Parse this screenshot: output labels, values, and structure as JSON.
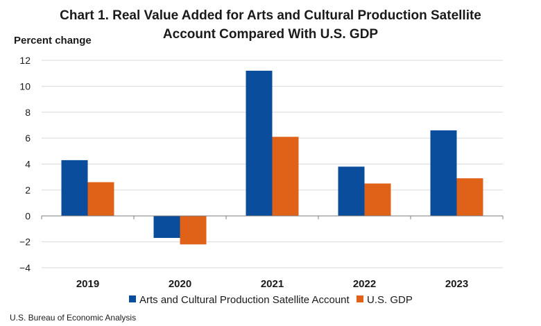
{
  "chart_data": {
    "type": "bar",
    "title_lines": [
      "Chart 1. Real Value Added for Arts and Cultural Production Satellite",
      "Account Compared With U.S. GDP"
    ],
    "ylabel": "Percent change",
    "xlabel": "",
    "categories": [
      "2019",
      "2020",
      "2021",
      "2022",
      "2023"
    ],
    "series": [
      {
        "name": "Arts and Cultural Production Satellite Account",
        "color": "#0a4d9c",
        "values": [
          4.3,
          -1.7,
          11.2,
          3.8,
          6.6
        ]
      },
      {
        "name": "U.S. GDP",
        "color": "#e06219",
        "values": [
          2.6,
          -2.2,
          6.1,
          2.5,
          2.9
        ]
      }
    ],
    "ylim": [
      -4,
      12
    ],
    "yticks": [
      -4,
      -2,
      0,
      2,
      4,
      6,
      8,
      10,
      12
    ],
    "ytick_labels": [
      "−4",
      "−2",
      "0",
      "2",
      "4",
      "6",
      "8",
      "10",
      "12"
    ],
    "grid": true,
    "legend_position": "bottom"
  },
  "source": "U.S. Bureau of Economic Analysis"
}
